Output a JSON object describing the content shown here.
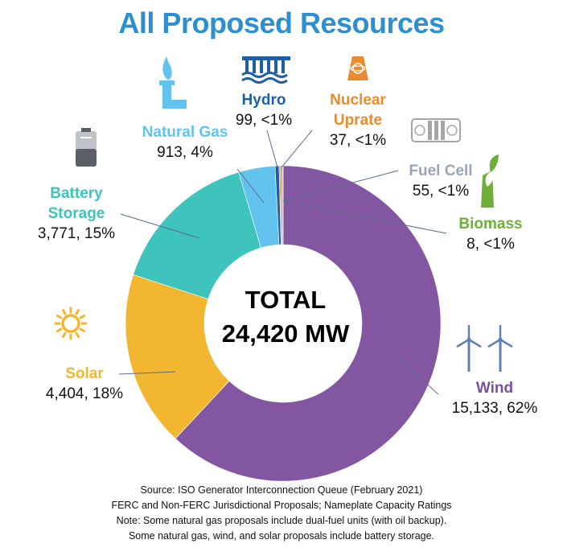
{
  "title": "All Proposed Resources",
  "total": {
    "line1": "TOTAL",
    "line2": "24,420 MW"
  },
  "chart_data": {
    "type": "pie",
    "style": "donut",
    "unit": "MW",
    "title": "All Proposed Resources",
    "total_mw": 24420,
    "categories": [
      "Wind",
      "Solar",
      "Battery Storage",
      "Natural Gas",
      "Hydro",
      "Nuclear Uprate",
      "Fuel Cell",
      "Biomass"
    ],
    "values": [
      15133,
      4404,
      3771,
      913,
      99,
      37,
      55,
      8
    ],
    "slices": [
      {
        "name_lines": [
          "Wind"
        ],
        "value_label": "15,133, 62%",
        "value": 15133,
        "color": "#8256a1",
        "icon": "wind-turbines-icon"
      },
      {
        "name_lines": [
          "Solar"
        ],
        "value_label": "4,404, 18%",
        "value": 4404,
        "color": "#f2b631",
        "icon": "sun-icon"
      },
      {
        "name_lines": [
          "Battery",
          "Storage"
        ],
        "value_label": "3,771, 15%",
        "value": 3771,
        "color": "#3fc3bd",
        "icon": "battery-icon"
      },
      {
        "name_lines": [
          "Natural Gas"
        ],
        "value_label": "913, 4%",
        "value": 913,
        "color": "#62c4ee",
        "icon": "gas-flame-icon"
      },
      {
        "name_lines": [
          "Hydro"
        ],
        "value_label": "99, <1%",
        "value": 99,
        "color": "#1f5fa5",
        "icon": "dam-icon"
      },
      {
        "name_lines": [
          "Nuclear",
          "Uprate"
        ],
        "value_label": "37, <1%",
        "value": 37,
        "color": "#e98b2e",
        "icon": "nuclear-icon"
      },
      {
        "name_lines": [
          "Fuel Cell"
        ],
        "value_label": "55, <1%",
        "value": 55,
        "color": "#a5a5a5",
        "icon": "fuel-cell-icon"
      },
      {
        "name_lines": [
          "Biomass"
        ],
        "value_label": "8, <1%",
        "value": 8,
        "color": "#6fae3a",
        "icon": "biomass-icon"
      }
    ]
  },
  "colors": {
    "title": "#2e8fd0",
    "leader": "#5a6e8c",
    "icon_wind": "#6080b0",
    "icon_hydro": "#1f5fa5",
    "icon_gas": "#62c4ee",
    "icon_nuclear": "#e98b2e",
    "icon_solar": "#f2b631",
    "icon_biomass": "#6fae3a",
    "icon_battery_dark": "#5a6066",
    "icon_battery_light": "#bfc3c7"
  },
  "source": [
    "Source: ISO Generator Interconnection Queue (February 2021)",
    "FERC and Non-FERC Jurisdictional Proposals; Nameplate Capacity Ratings",
    "Note: Some natural gas proposals include dual-fuel units (with oil backup).",
    "Some natural gas, wind, and solar proposals include battery storage."
  ]
}
